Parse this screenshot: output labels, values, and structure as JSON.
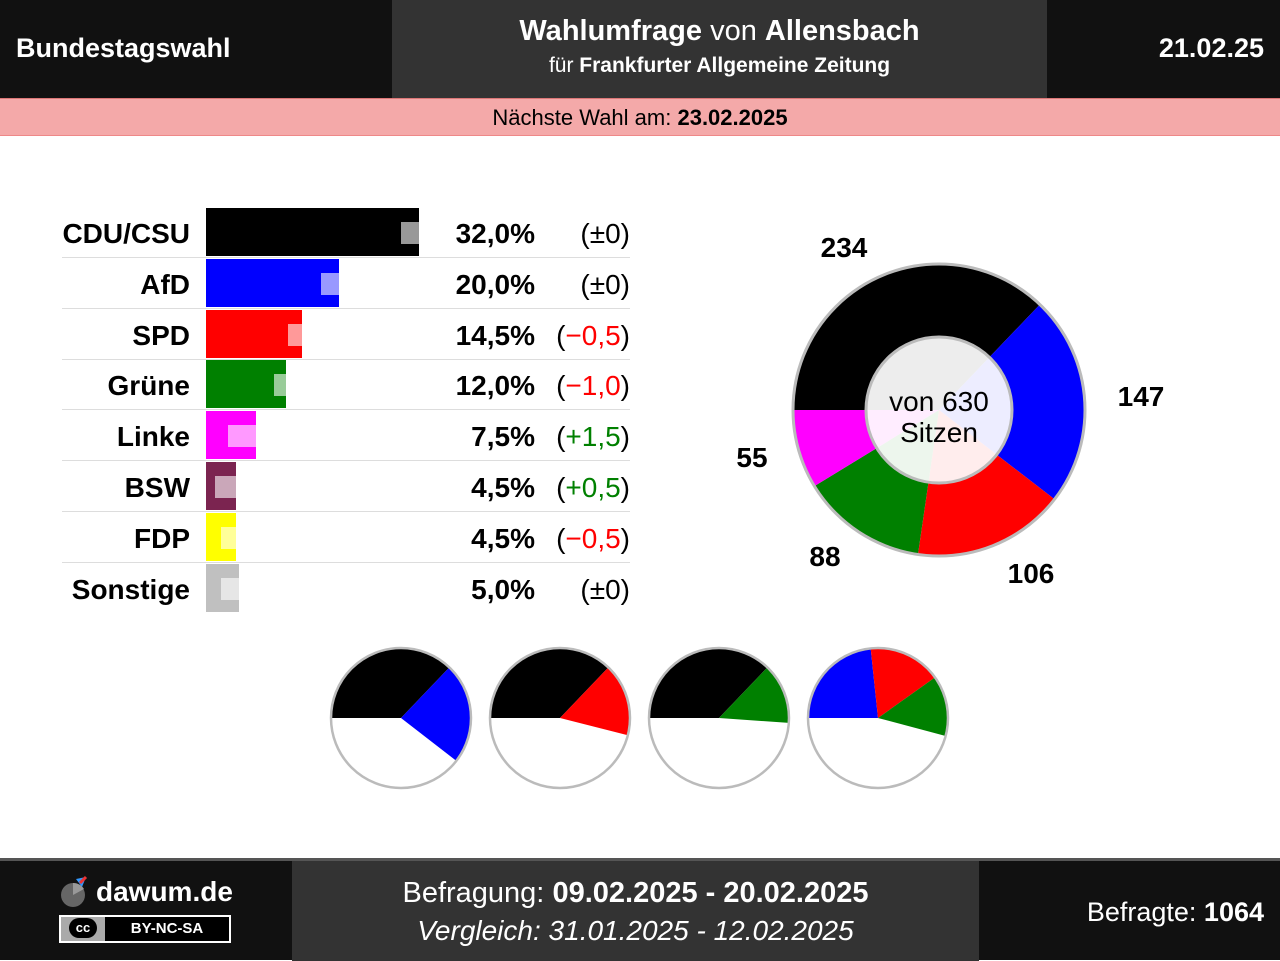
{
  "header": {
    "left": "Bundestagswahl",
    "title_bold_1": "Wahlumfrage",
    "title_mid": "von",
    "title_bold_2": "Allensbach",
    "subtitle_pre": "für",
    "subtitle_bold": "Frankfurter Allgemeine Zeitung",
    "date": "21.02.25"
  },
  "next_election": {
    "label": "Nächste Wahl am:",
    "date": "23.02.2025"
  },
  "chart_data": [
    {
      "type": "bar",
      "orientation": "horizontal",
      "categories": [
        "CDU/CSU",
        "AfD",
        "SPD",
        "Grüne",
        "Linke",
        "BSW",
        "FDP",
        "Sonstige"
      ],
      "values": [
        32.0,
        20.0,
        14.5,
        12.0,
        7.5,
        4.5,
        4.5,
        5.0
      ],
      "previous_values": [
        32.0,
        20.0,
        15.0,
        13.0,
        6.0,
        4.0,
        5.0,
        5.0
      ],
      "value_labels": [
        "32,0%",
        "20,0%",
        "14,5%",
        "12,0%",
        "7,5%",
        "4,5%",
        "4,5%",
        "5,0%"
      ],
      "change_labels": [
        "(±0)",
        "(±0)",
        "(−0,5)",
        "(−1,0)",
        "(+1,5)",
        "(+0,5)",
        "(−0,5)",
        "(±0)"
      ],
      "change_sign": [
        "zero",
        "zero",
        "neg",
        "neg",
        "pos",
        "pos",
        "neg",
        "zero"
      ],
      "colors": [
        "#000000",
        "#0000ff",
        "#ff0000",
        "#008000",
        "#ff00ff",
        "#7b2450",
        "#ffff00",
        "#c0c0c0"
      ]
    },
    {
      "type": "pie",
      "variant": "donut",
      "categories": [
        "CDU/CSU",
        "AfD",
        "SPD",
        "Grüne",
        "Linke"
      ],
      "values": [
        234,
        147,
        106,
        88,
        55
      ],
      "labels": [
        "234",
        "147",
        "106",
        "88",
        "55"
      ],
      "colors": [
        "#000000",
        "#0000ff",
        "#ff0000",
        "#008000",
        "#ff00ff"
      ],
      "center_text": [
        "von 630",
        "Sitzen"
      ]
    },
    {
      "type": "pie",
      "variant": "coalitions",
      "total_seats": 630,
      "coalitions": [
        {
          "parties": [
            "CDU/CSU",
            "AfD"
          ],
          "seats": [
            234,
            147
          ],
          "colors": [
            "#000000",
            "#0000ff"
          ]
        },
        {
          "parties": [
            "CDU/CSU",
            "SPD"
          ],
          "seats": [
            234,
            106
          ],
          "colors": [
            "#000000",
            "#ff0000"
          ]
        },
        {
          "parties": [
            "CDU/CSU",
            "Grüne"
          ],
          "seats": [
            234,
            88
          ],
          "colors": [
            "#000000",
            "#008000"
          ]
        },
        {
          "parties": [
            "AfD",
            "SPD",
            "Grüne"
          ],
          "seats": [
            147,
            106,
            88
          ],
          "colors": [
            "#0000ff",
            "#ff0000",
            "#008000"
          ]
        }
      ]
    }
  ],
  "colors": {
    "negative": "#ff0000",
    "positive": "#008000",
    "zero": "#000000"
  },
  "footer": {
    "site": "dawum.de",
    "license_badge": "cc",
    "license": "BY-NC-SA",
    "survey_label": "Befragung:",
    "survey_dates": "09.02.2025 - 20.02.2025",
    "compare_label": "Vergleich:",
    "compare_dates": "31.01.2025 - 12.02.2025",
    "respondents_label": "Befragte:",
    "respondents": "1064"
  }
}
